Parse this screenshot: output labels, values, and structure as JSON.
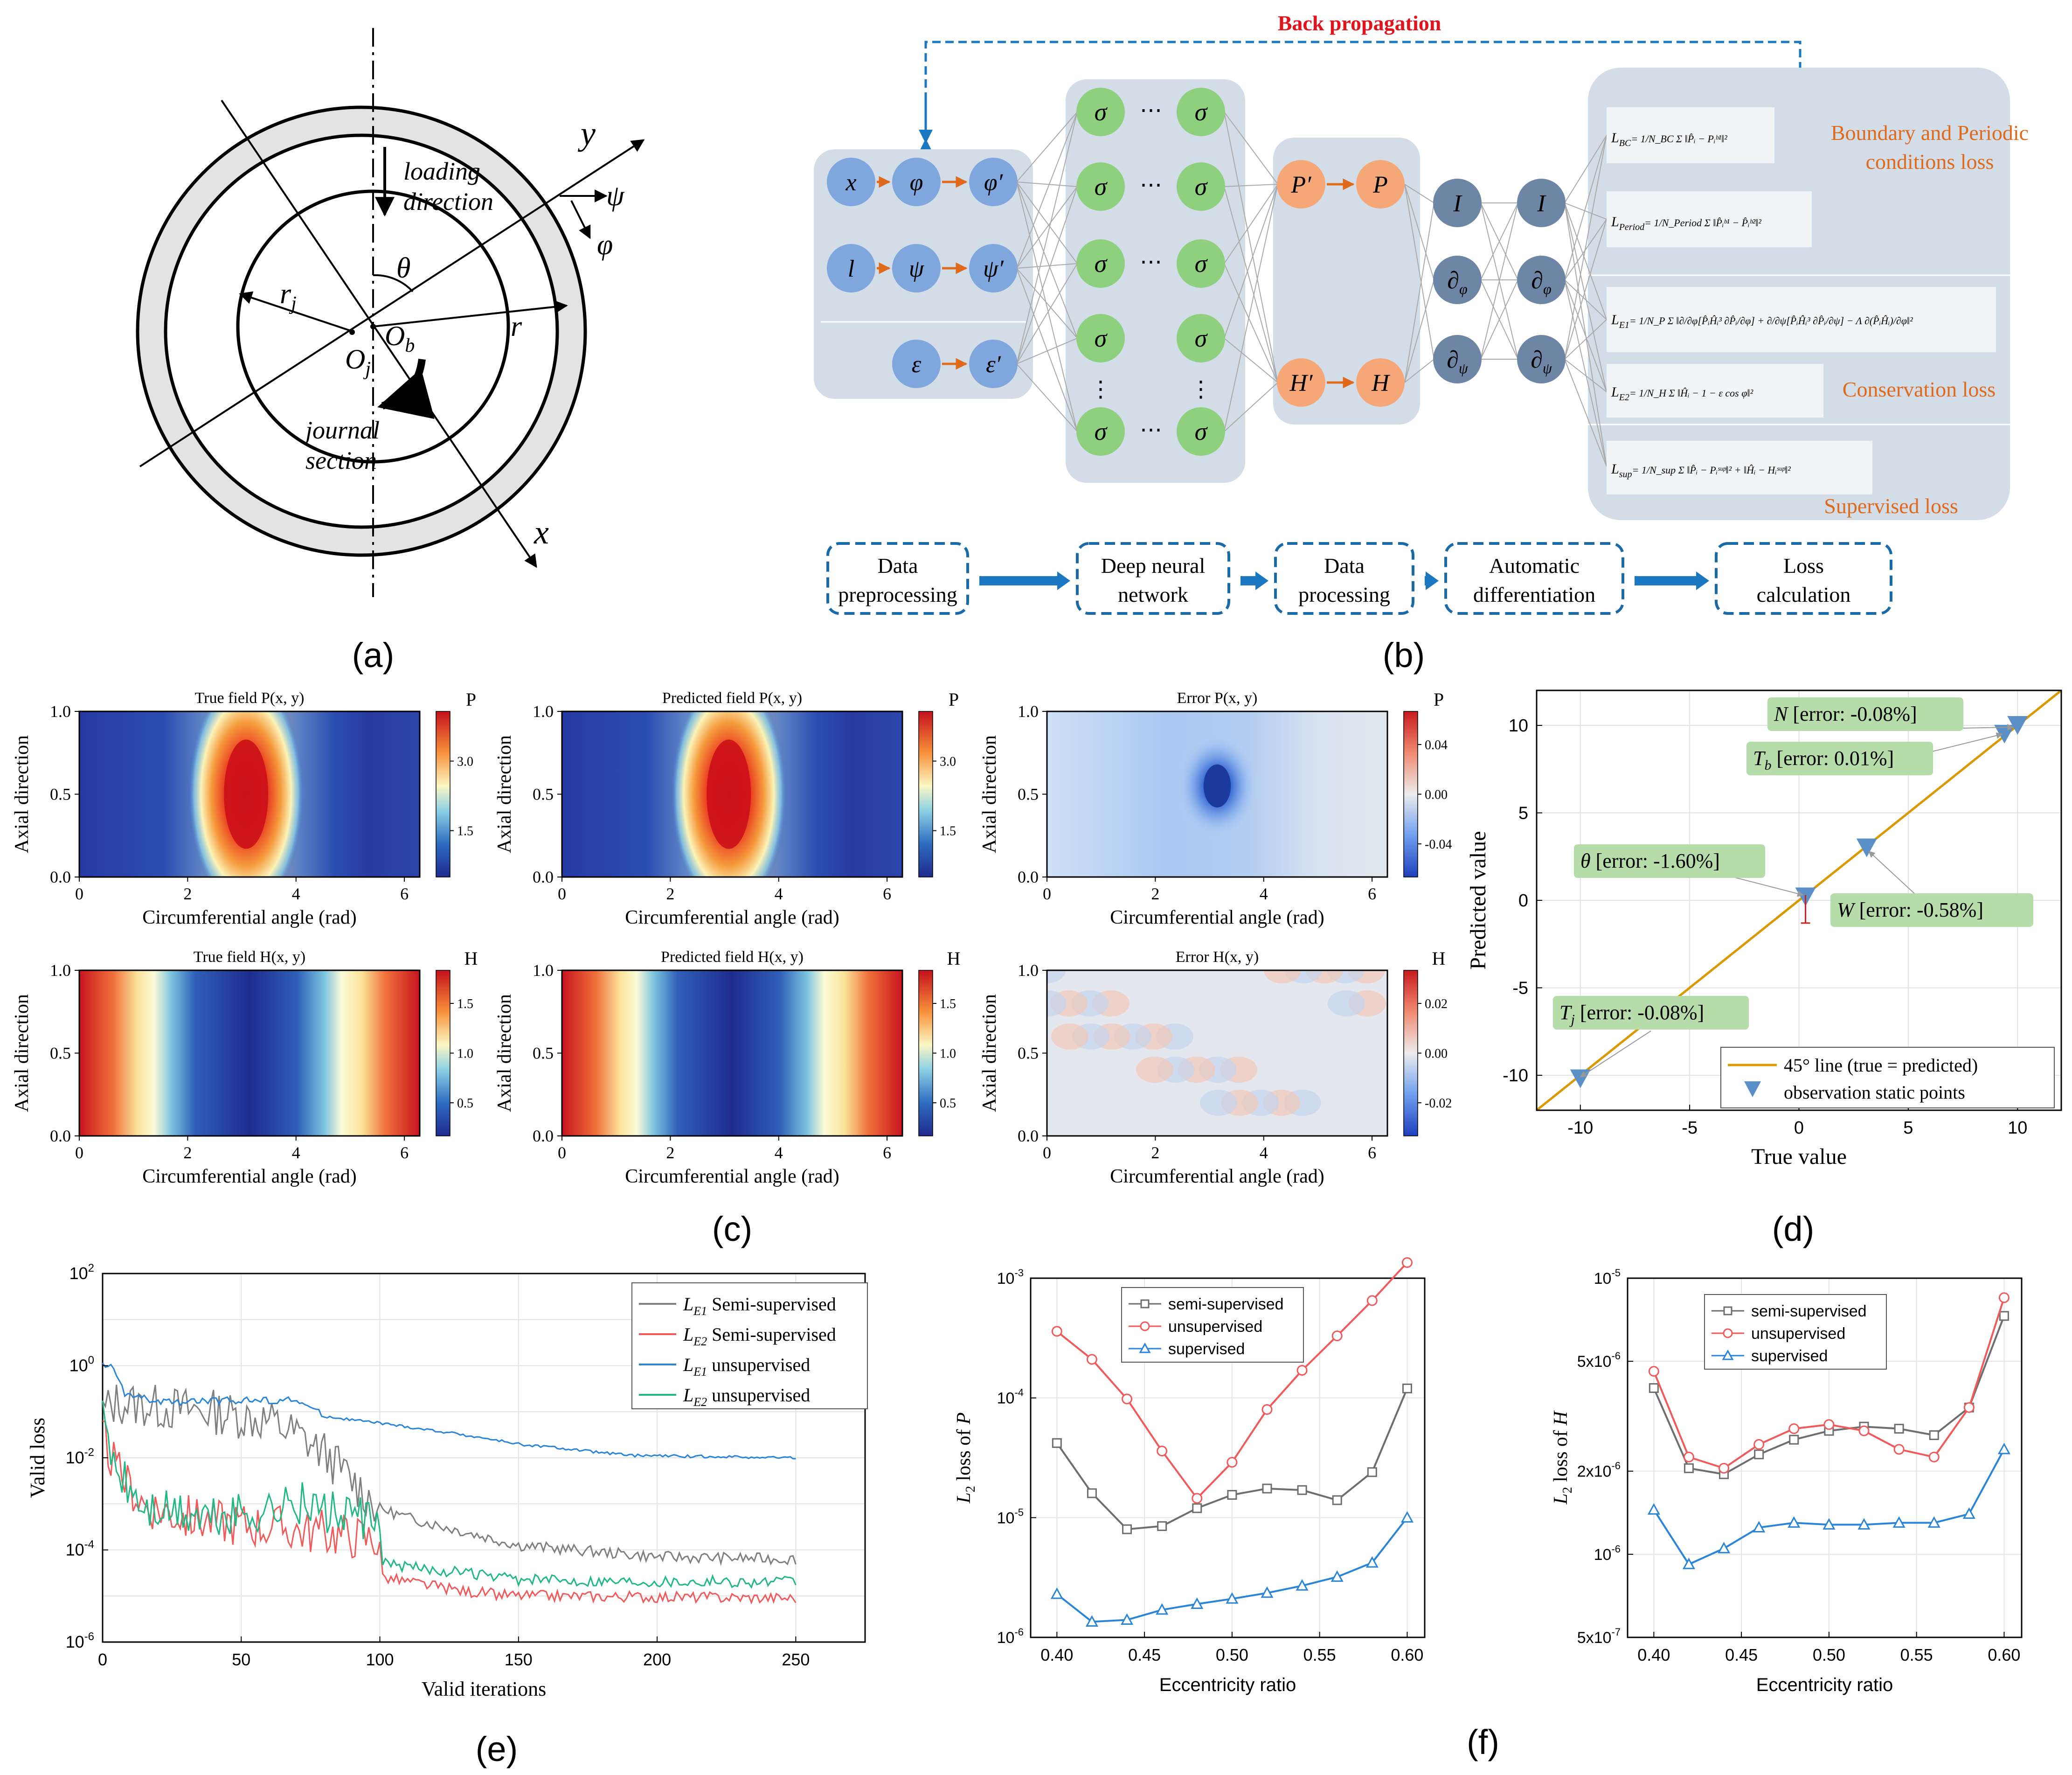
{
  "journal": {
    "labels": {
      "y": "y",
      "psi": "ψ",
      "phi": "φ",
      "x": "x",
      "theta": "θ",
      "r": "r",
      "rj": "r",
      "rj_sub": "j",
      "oj": "O",
      "oj_sub": "j",
      "ob": "O",
      "ob_sub": "b"
    },
    "loading_line1": "loading",
    "loading_line2": "direction",
    "journal_line1": "journal",
    "journal_line2": "section"
  },
  "network": {
    "backprop": "Back propagation",
    "input_nodes": [
      [
        "x",
        "φ",
        "φ′"
      ],
      [
        "l",
        "ψ",
        "ψ′"
      ],
      [
        "ε",
        "ε′"
      ]
    ],
    "sigma": "σ",
    "dots_h": "⋯",
    "dots_v": "⋮",
    "proc_nodes": [
      "P′",
      "P",
      "H′",
      "H"
    ],
    "diff_nodes": [
      "I",
      "∂",
      "∂",
      "I",
      "∂",
      "∂"
    ],
    "diff_subs": [
      "",
      "φ",
      "ψ",
      "",
      "φ",
      "ψ"
    ],
    "losses": {
      "bc": "Boundary and Periodic",
      "bc2": "conditions loss",
      "cons": "Conservation loss",
      "sup": "Supervised loss"
    },
    "eq": {
      "lbc": "L",
      "lbc_sub": "BC",
      "lbc_rhs": "= 1/N_BC Σ ‖P̂ᵢ − Pᵢᵇ¹‖²",
      "lper": "L",
      "lper_sub": "Period",
      "lper_rhs": "= 1/N_Period Σ ‖P̂ᵢᵇ¹ − P̂ᵢᵇ²‖²",
      "le1": "L",
      "le1_sub": "E1",
      "le1_rhs": "= 1/N_P Σ ‖∂/∂φ[P̂ᵢĤᵢ³ ∂P̂ᵢ/∂φ] + ∂/∂ψ[P̂ᵢĤᵢ³ ∂P̂ᵢ/∂ψ] − Λ ∂(P̂ᵢĤᵢ)/∂φ‖²",
      "le2": "L",
      "le2_sub": "E2",
      "le2_rhs": "= 1/N_H Σ ‖Ĥᵢ − 1 − ε cos φ‖²",
      "lsup": "L",
      "lsup_sub": "sup",
      "lsup_rhs": "= 1/N_sup Σ ‖P̂ᵢ − Pᵢˢᵘᵖ‖² + ‖Ĥᵢ − Hᵢˢᵘᵖ‖²"
    },
    "pipeline": [
      [
        "Data",
        "preprocessing"
      ],
      [
        "Deep neural",
        "network"
      ],
      [
        "Data",
        "processing"
      ],
      [
        "Automatic",
        "differentiation"
      ],
      [
        "Loss",
        "calculation"
      ]
    ]
  },
  "panels": {
    "a": "(a)",
    "b": "(b)",
    "c": "(c)",
    "d": "(d)",
    "e": "(e)",
    "f": "(f)"
  },
  "heatmaps": {
    "titles": [
      "True field P(x, y)",
      "Predicted field P(x, y)",
      "Error P(x, y)",
      "True field H(x, y)",
      "Predicted field H(x, y)",
      "Error H(x, y)"
    ],
    "cb_labels": [
      "P",
      "P",
      "P",
      "H",
      "H",
      "H"
    ],
    "cb_ticks": [
      [
        "3.0",
        "1.5"
      ],
      [
        "3.0",
        "1.5"
      ],
      [
        "0.04",
        "0.00",
        "-0.04"
      ],
      [
        "1.5",
        "1.0",
        "0.5"
      ],
      [
        "1.5",
        "1.0",
        "0.5"
      ],
      [
        "0.02",
        "0.00",
        "-0.02"
      ]
    ],
    "xlabel": "Circumferential angle (rad)",
    "ylabel": "Axial direction",
    "xticks": [
      "0",
      "2",
      "4",
      "6"
    ],
    "yticks": [
      "1.0",
      "0.5",
      "0.0"
    ]
  },
  "chart_data": [
    {
      "type": "scatter",
      "id": "d",
      "xlabel": "True value",
      "ylabel": "Predicted value",
      "xlim": [
        -12,
        12
      ],
      "ylim": [
        -12,
        12
      ],
      "xticks": [
        -10,
        -5,
        0,
        5,
        10
      ],
      "yticks": [
        -10,
        -5,
        0,
        5,
        10
      ],
      "points": [
        {
          "name": "N",
          "x": 10,
          "y": 10,
          "err": "-0.08%"
        },
        {
          "name": "T_b",
          "x": 9.4,
          "y": 9.5,
          "err": "0.01%"
        },
        {
          "name": "θ",
          "x": 0.3,
          "y": 0.2,
          "err": "-1.60%"
        },
        {
          "name": "W",
          "x": 3.1,
          "y": 3.0,
          "err": "-0.58%"
        },
        {
          "name": "T_j",
          "x": -10,
          "y": -10.2,
          "err": "-0.08%"
        }
      ],
      "labels": {
        "n": "N",
        "n_err": " [error: -0.08%]",
        "tb": "T",
        "tb_sub": "b",
        "tb_err": " [error: 0.01%]",
        "theta": "θ",
        "theta_err": " [error: -1.60%]",
        "w": "W",
        "w_err": " [error: -0.58%]",
        "tj": "T",
        "tj_sub": "j",
        "tj_err": " [error: -0.08%]"
      },
      "legend": [
        "45° line (true = predicted)",
        "observation static points"
      ],
      "colors": {
        "line": "#d89a00",
        "marker": "#5b8fc7"
      }
    },
    {
      "type": "line",
      "id": "e",
      "yscale": "log",
      "xlabel": "Valid iterations",
      "ylabel": "Valid loss",
      "xlim": [
        0,
        275
      ],
      "ylim_exp": [
        -6,
        2
      ],
      "xticks": [
        0,
        50,
        100,
        150,
        200,
        250
      ],
      "yticks_exp": [
        2,
        0,
        -2,
        -4,
        -6
      ],
      "series": [
        {
          "name": "L_E1 Semi-supervised",
          "sub": "E1",
          "label": " Semi-supervised",
          "color": "#7f7f7f",
          "key_log10": [
            [
              0,
              -1
            ],
            [
              5,
              -0.8
            ],
            [
              20,
              -0.9
            ],
            [
              40,
              -1.0
            ],
            [
              60,
              -1.2
            ],
            [
              70,
              -1.5
            ],
            [
              80,
              -1.9
            ],
            [
              90,
              -2.5
            ],
            [
              100,
              -3.1
            ],
            [
              110,
              -3.3
            ],
            [
              130,
              -3.6
            ],
            [
              150,
              -3.9
            ],
            [
              200,
              -4.15
            ],
            [
              250,
              -4.2
            ]
          ]
        },
        {
          "name": "L_E2 Semi-supervised",
          "sub": "E2",
          "label": " Semi-supervised",
          "color": "#f05a5a",
          "key_log10": [
            [
              0,
              -1.5
            ],
            [
              5,
              -2.3
            ],
            [
              15,
              -3.0
            ],
            [
              30,
              -3.3
            ],
            [
              60,
              -3.5
            ],
            [
              90,
              -3.7
            ],
            [
              100,
              -3.8
            ],
            [
              101,
              -4.6
            ],
            [
              130,
              -4.9
            ],
            [
              150,
              -5.0
            ],
            [
              250,
              -5.05
            ]
          ]
        },
        {
          "name": "L_E1 unsupervised",
          "sub": "E1",
          "label": " unsupervised",
          "color": "#2a85d8",
          "key_log10": [
            [
              0,
              0
            ],
            [
              3,
              0.0
            ],
            [
              8,
              -0.6
            ],
            [
              20,
              -0.8
            ],
            [
              50,
              -0.75
            ],
            [
              70,
              -0.75
            ],
            [
              80,
              -1.1
            ],
            [
              100,
              -1.25
            ],
            [
              130,
              -1.5
            ],
            [
              150,
              -1.7
            ],
            [
              190,
              -1.95
            ],
            [
              250,
              -2.0
            ]
          ]
        },
        {
          "name": "L_E2 unsupervised",
          "sub": "E2",
          "label": " unsupervised",
          "color": "#22b884",
          "key_log10": [
            [
              0,
              -1.2
            ],
            [
              5,
              -2.3
            ],
            [
              15,
              -3.1
            ],
            [
              40,
              -3.3
            ],
            [
              70,
              -3.0
            ],
            [
              90,
              -3.3
            ],
            [
              100,
              -3.5
            ],
            [
              101,
              -4.3
            ],
            [
              130,
              -4.5
            ],
            [
              150,
              -4.65
            ],
            [
              250,
              -4.7
            ]
          ]
        }
      ]
    },
    {
      "type": "line",
      "id": "f1",
      "yscale": "log",
      "xlabel": "Eccentricity ratio",
      "ylabel": "L",
      "ylabel_sub": "2",
      "ylabel_rest": " loss of ",
      "ylabel_var": "P",
      "xlim": [
        0.385,
        0.61
      ],
      "ylim_exp": [
        -6,
        -3
      ],
      "yticks_exp": [
        -3,
        -4,
        -5,
        -6
      ],
      "x": [
        0.4,
        0.42,
        0.44,
        0.46,
        0.48,
        0.5,
        0.52,
        0.54,
        0.56,
        0.58,
        0.6
      ],
      "xticks": [
        "0.40",
        "0.45",
        "0.50",
        "0.55",
        "0.60"
      ],
      "series": [
        {
          "name": "semi-supervised",
          "color": "#6e6e6e",
          "marker": "square",
          "values": [
            4.2e-05,
            1.6e-05,
            8e-06,
            8.5e-06,
            1.2e-05,
            1.55e-05,
            1.75e-05,
            1.7e-05,
            1.4e-05,
            2.4e-05,
            0.00012
          ]
        },
        {
          "name": "unsupervised",
          "color": "#f05a5a",
          "marker": "circle",
          "values": [
            0.00036,
            0.00021,
            9.8e-05,
            3.6e-05,
            1.45e-05,
            2.9e-05,
            8e-05,
            0.00017,
            0.00033,
            0.00065,
            0.00135
          ]
        },
        {
          "name": "supervised",
          "color": "#2a85d8",
          "marker": "triangle",
          "values": [
            2.3e-06,
            1.35e-06,
            1.4e-06,
            1.7e-06,
            1.9e-06,
            2.1e-06,
            2.35e-06,
            2.7e-06,
            3.2e-06,
            4.2e-06,
            1e-05
          ]
        }
      ]
    },
    {
      "type": "line",
      "id": "f2",
      "yscale": "log",
      "xlabel": "Eccentricity ratio",
      "ylabel": "L",
      "ylabel_sub": "2",
      "ylabel_rest": " loss of ",
      "ylabel_var": "H",
      "xlim": [
        0.385,
        0.61
      ],
      "ylim": [
        5e-07,
        1e-05
      ],
      "yticks": [
        "10",
        "5x10",
        "2x10",
        "10",
        "5x10"
      ],
      "ytick_exp": [
        "-5",
        "-6",
        "-6",
        "-6",
        "-7"
      ],
      "x": [
        0.4,
        0.42,
        0.44,
        0.46,
        0.48,
        0.5,
        0.52,
        0.54,
        0.56,
        0.58,
        0.6
      ],
      "xticks": [
        "0.40",
        "0.45",
        "0.50",
        "0.55",
        "0.60"
      ],
      "series": [
        {
          "name": "semi-supervised",
          "color": "#6e6e6e",
          "marker": "square",
          "values": [
            4e-06,
            2.05e-06,
            1.95e-06,
            2.3e-06,
            2.6e-06,
            2.8e-06,
            2.9e-06,
            2.85e-06,
            2.7e-06,
            3.4e-06,
            7.3e-06
          ]
        },
        {
          "name": "unsupervised",
          "color": "#f05a5a",
          "marker": "circle",
          "values": [
            4.6e-06,
            2.25e-06,
            2.05e-06,
            2.5e-06,
            2.85e-06,
            2.95e-06,
            2.8e-06,
            2.4e-06,
            2.25e-06,
            3.4e-06,
            8.5e-06
          ]
        },
        {
          "name": "supervised",
          "color": "#2a85d8",
          "marker": "triangle",
          "values": [
            1.45e-06,
            9.2e-07,
            1.05e-06,
            1.25e-06,
            1.3e-06,
            1.28e-06,
            1.28e-06,
            1.3e-06,
            1.3e-06,
            1.4e-06,
            2.4e-06
          ]
        }
      ]
    }
  ]
}
